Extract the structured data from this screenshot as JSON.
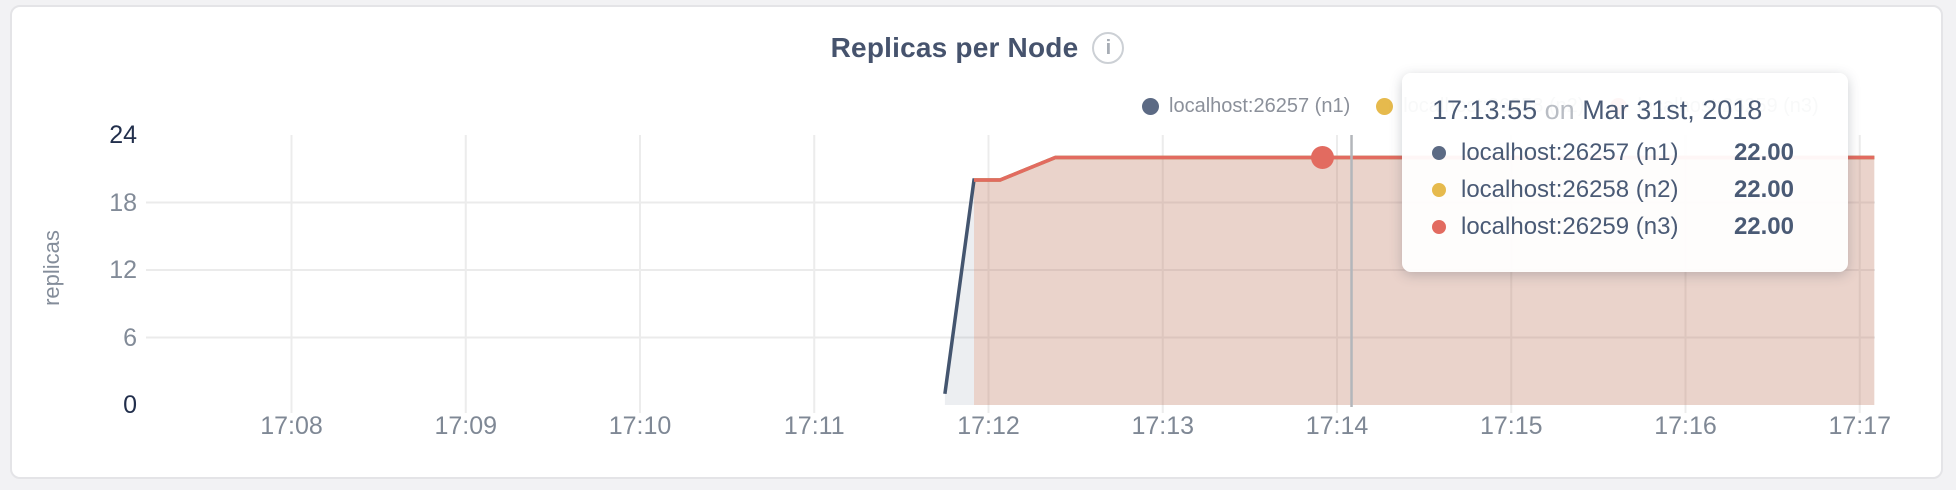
{
  "card_title": "Replicas per Node",
  "info_icon_glyph": "i",
  "y_axis_title": "replicas",
  "legend": {
    "items": [
      {
        "label": "localhost:26257 (n1)",
        "color": "#5c6a84"
      },
      {
        "label": "localhost:26258 (n2)",
        "color": "#e6ba4d"
      },
      {
        "label": "localhost:26259 (n3)",
        "color": "#e26b60"
      }
    ]
  },
  "tooltip": {
    "time": "17:13:55",
    "separator": "on",
    "date": "Mar 31st, 2018",
    "rows": [
      {
        "label": "localhost:26257 (n1)",
        "value": "22.00",
        "color": "#5c6a84"
      },
      {
        "label": "localhost:26258 (n2)",
        "value": "22.00",
        "color": "#e6ba4d"
      },
      {
        "label": "localhost:26259 (n3)",
        "value": "22.00",
        "color": "#e26b60"
      }
    ]
  },
  "chart_data": {
    "type": "area",
    "title": "Replicas per Node",
    "ylabel": "replicas",
    "xlabel": "",
    "ylim": [
      0,
      24
    ],
    "y_ticks": [
      0,
      6,
      12,
      18,
      24
    ],
    "x_ticks": [
      "17:08",
      "17:09",
      "17:10",
      "17:11",
      "17:12",
      "17:13",
      "17:14",
      "17:15",
      "17:16",
      "17:17"
    ],
    "grid": true,
    "legend_position": "top-right",
    "series": [
      {
        "name": "localhost:26257 (n1)",
        "color": "#44556f",
        "fill": "rgba(71,88,114,0.10)",
        "points": [
          [
            "17:11:45",
            1
          ],
          [
            "17:11:55",
            20
          ],
          [
            "17:12:04",
            20
          ],
          [
            "17:12:23",
            22
          ],
          [
            "17:17:05",
            22
          ]
        ]
      },
      {
        "name": "localhost:26258 (n2)",
        "color": "#e6ba4d",
        "fill": "rgba(232,186,74,0.10)",
        "points": [
          [
            "17:11:55",
            20
          ],
          [
            "17:12:04",
            20
          ],
          [
            "17:12:23",
            22
          ],
          [
            "17:17:05",
            22
          ]
        ]
      },
      {
        "name": "localhost:26259 (n3)",
        "color": "#e26b60",
        "fill": "rgba(226,107,98,0.17)",
        "points": [
          [
            "17:11:55",
            20
          ],
          [
            "17:12:04",
            20
          ],
          [
            "17:12:23",
            22
          ],
          [
            "17:17:05",
            22
          ]
        ]
      }
    ],
    "highlight": {
      "time": "17:13:55",
      "value": 22,
      "series": "localhost:26259 (n3)",
      "color": "#e26b60"
    },
    "crosshair_time": "17:14:05"
  }
}
